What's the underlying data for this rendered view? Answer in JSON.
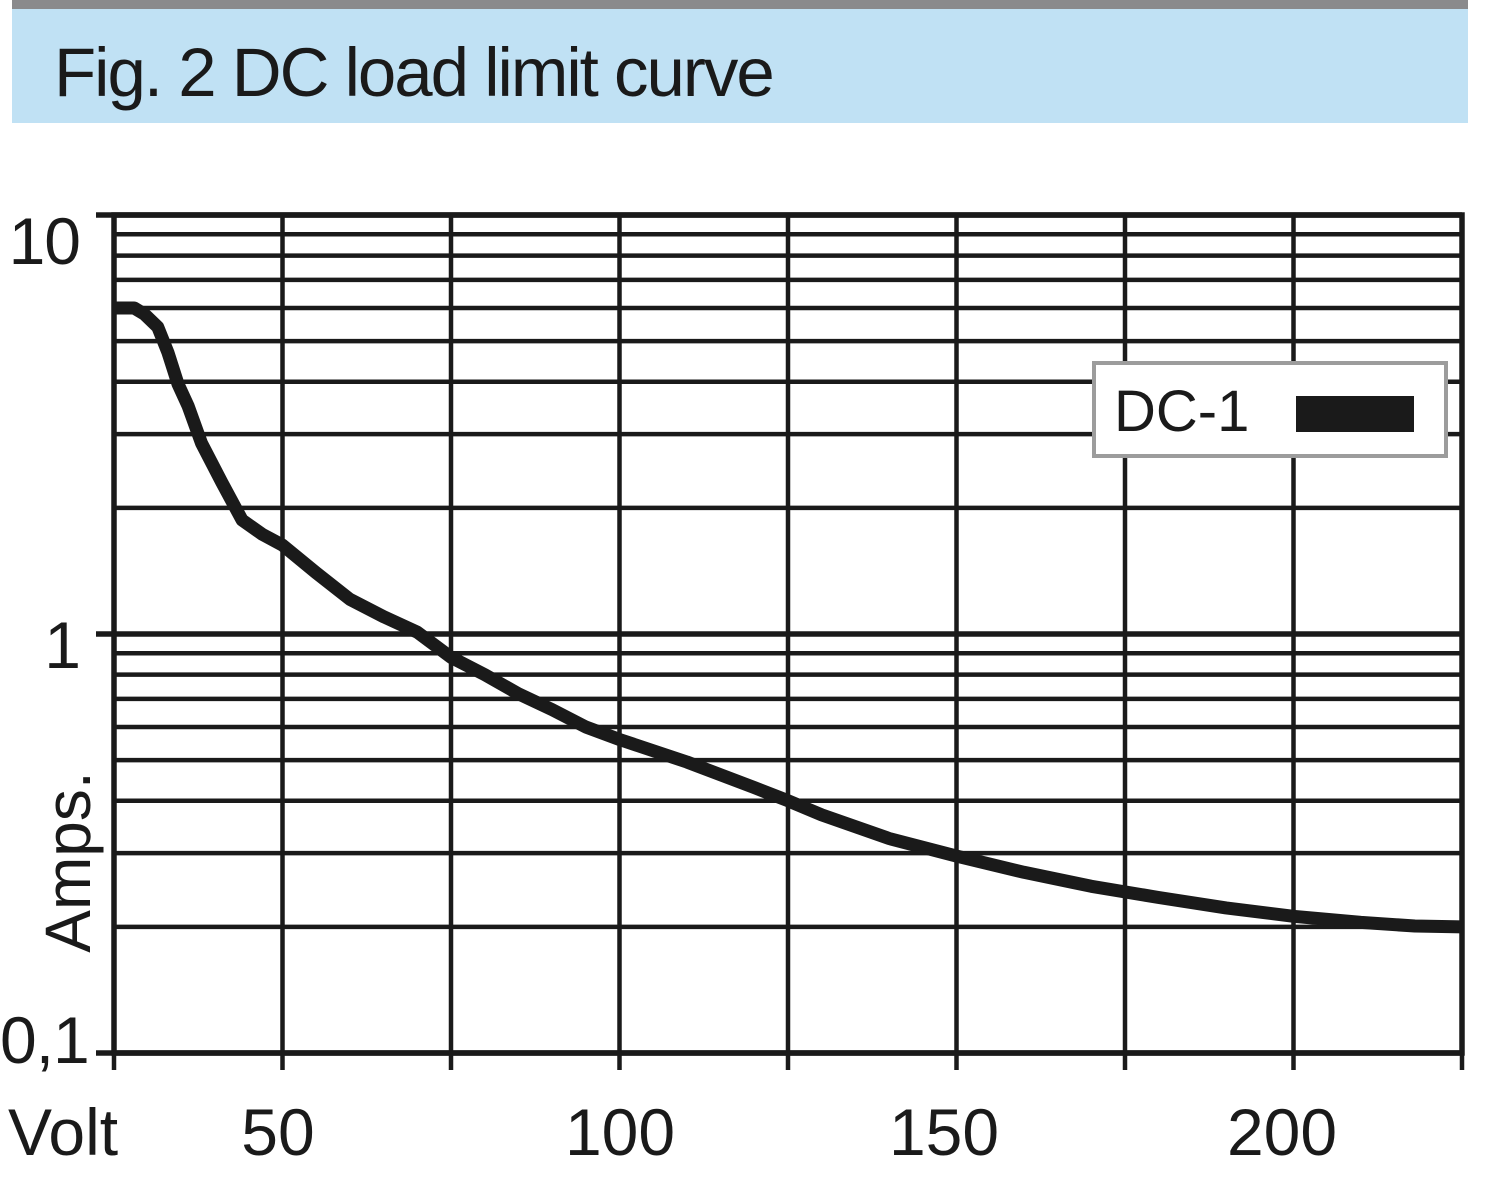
{
  "header": {
    "figure_title": "Fig. 2 DC load limit curve",
    "banner_color": "#c0e1f4",
    "top_bar_color": "#8a8a8c"
  },
  "chart_data": {
    "type": "line",
    "title": "Fig. 2 DC load limit curve",
    "xlabel": "Volt",
    "ylabel": "Amps.",
    "x_scale": "linear",
    "y_scale": "log",
    "xlim": [
      25,
      225
    ],
    "ylim": [
      0.1,
      10
    ],
    "grid": true,
    "line_color": "#1a1a1a",
    "x_gridlines": [
      25,
      50,
      75,
      100,
      125,
      150,
      175,
      200,
      225
    ],
    "x_major_ticks": [
      50,
      100,
      150,
      200
    ],
    "x_tick_labels": [
      "50",
      "100",
      "150",
      "200"
    ],
    "y_major_gridlines": [
      10,
      1,
      0.1
    ],
    "y_tick_labels": [
      "10",
      "1",
      "0,1"
    ],
    "y_minor_gridlines": [
      9,
      8,
      7,
      6,
      5,
      4,
      3,
      2,
      0.9,
      0.8,
      0.7,
      0.6,
      0.5,
      0.4,
      0.3,
      0.2
    ],
    "legend": {
      "position": "upper-right",
      "entries": [
        {
          "label": "DC-1",
          "color": "#1a1a1a"
        }
      ]
    },
    "series": [
      {
        "name": "DC-1",
        "points": [
          [
            25,
            6.0
          ],
          [
            28,
            6.0
          ],
          [
            29.5,
            5.8
          ],
          [
            31.5,
            5.4
          ],
          [
            33,
            4.7
          ],
          [
            34.5,
            3.95
          ],
          [
            36,
            3.5
          ],
          [
            38,
            2.85
          ],
          [
            41,
            2.3
          ],
          [
            44,
            1.87
          ],
          [
            47,
            1.73
          ],
          [
            50,
            1.63
          ],
          [
            55,
            1.4
          ],
          [
            60,
            1.21
          ],
          [
            65,
            1.1
          ],
          [
            70,
            1.01
          ],
          [
            75,
            0.88
          ],
          [
            80,
            0.8
          ],
          [
            85,
            0.72
          ],
          [
            90,
            0.66
          ],
          [
            95,
            0.6
          ],
          [
            100,
            0.56
          ],
          [
            110,
            0.495
          ],
          [
            120,
            0.43
          ],
          [
            125,
            0.4
          ],
          [
            130,
            0.37
          ],
          [
            140,
            0.325
          ],
          [
            150,
            0.295
          ],
          [
            160,
            0.27
          ],
          [
            170,
            0.25
          ],
          [
            180,
            0.235
          ],
          [
            190,
            0.222
          ],
          [
            200,
            0.212
          ],
          [
            210,
            0.205
          ],
          [
            218,
            0.201
          ],
          [
            225,
            0.2
          ]
        ]
      }
    ]
  }
}
